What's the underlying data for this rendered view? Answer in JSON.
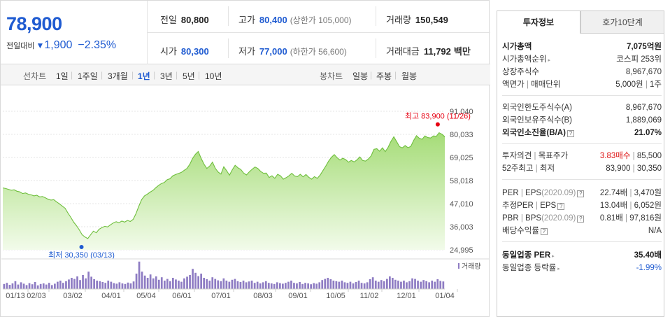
{
  "summary": {
    "price": "78,900",
    "change_label": "전일대비",
    "change_arrow": "▼",
    "change_value": "1,900",
    "change_pct": "−2.35%",
    "prev_close": {
      "label": "전일",
      "value": "80,800"
    },
    "high": {
      "label": "고가",
      "value": "80,400",
      "sub": "(상한가 105,000)"
    },
    "volume": {
      "label": "거래량",
      "value": "150,549"
    },
    "open": {
      "label": "시가",
      "value": "80,300"
    },
    "low": {
      "label": "저가",
      "value": "77,000",
      "sub": "(하한가 56,600)"
    },
    "amount": {
      "label": "거래대금",
      "value": "11,792",
      "unit": "백만"
    }
  },
  "periods": {
    "line_label": "선차트",
    "line_items": [
      "1일",
      "1주일",
      "3개월",
      "1년",
      "3년",
      "5년",
      "10년"
    ],
    "active": "1년",
    "candle_label": "봉차트",
    "candle_items": [
      "일봉",
      "주봉",
      "월봉"
    ]
  },
  "chart_data": {
    "type": "area",
    "y_ticks": [
      "91,040",
      "80,033",
      "69,025",
      "58,018",
      "47,010",
      "36,003",
      "24,995"
    ],
    "ylim": [
      24995,
      91040
    ],
    "x_labels": [
      "01/13",
      "02/03",
      "03/02",
      "04/01",
      "05/04",
      "06/01",
      "07/01",
      "08/03",
      "09/01",
      "10/05",
      "11/02",
      "12/01",
      "01/04"
    ],
    "max_annotation": "최고 83,900 (11/26)",
    "min_annotation": "최저 30,350 (03/13)",
    "volume_legend": "거래량",
    "series": [
      {
        "values": [
          54500,
          54200,
          53800,
          53400,
          53600,
          52900,
          52600,
          51800,
          52100,
          51500,
          51200,
          50700,
          51000,
          50200,
          50400,
          49800,
          49100,
          48700,
          48900,
          47800,
          46900,
          45800,
          44800,
          42500,
          40500,
          38200,
          36500,
          34500,
          32200,
          31100,
          30350,
          32200,
          33900,
          33100,
          34800,
          35600,
          36200,
          35900,
          36900,
          37800,
          38400,
          37900,
          38700,
          38200,
          39000,
          38500,
          39500,
          42200,
          45800,
          48900,
          50700,
          51500,
          52500,
          53300,
          54600,
          55700,
          56600,
          57100,
          58400,
          58900,
          60300,
          60900,
          61400,
          61900,
          62900,
          63800,
          65800,
          68600,
          70600,
          71900,
          68600,
          65900,
          63800,
          64900,
          66800,
          63900,
          62100,
          61100,
          64600,
          62700,
          60600,
          63200,
          65300,
          64100,
          63300,
          61600,
          60700,
          62200,
          63400,
          64500,
          63800,
          62400,
          61500,
          61600,
          59500,
          60300,
          59100,
          61000,
          60300,
          58700,
          59400,
          60300,
          61500,
          60200,
          59900,
          61000,
          59800,
          60900,
          59600,
          58700,
          59900,
          59100,
          60600,
          62800,
          64900,
          67300,
          69100,
          70400,
          68900,
          67800,
          68700,
          68000,
          66800,
          67600,
          66900,
          67900,
          69300,
          67600,
          67300,
          68300,
          69800,
          72900,
          73200,
          72000,
          73600,
          71800,
          73900,
          76700,
          78900,
          76600,
          74200,
          73600,
          74700,
          73700,
          74300,
          77100,
          79400,
          78200,
          77700,
          79300,
          78500,
          78300,
          79300,
          79100,
          80800,
          80100,
          78900
        ]
      }
    ],
    "volume": [
      0.18,
      0.22,
      0.15,
      0.2,
      0.28,
      0.16,
      0.24,
      0.19,
      0.14,
      0.21,
      0.17,
      0.25,
      0.13,
      0.18,
      0.2,
      0.16,
      0.22,
      0.14,
      0.19,
      0.26,
      0.3,
      0.22,
      0.28,
      0.34,
      0.4,
      0.36,
      0.45,
      0.32,
      0.5,
      0.38,
      0.62,
      0.44,
      0.35,
      0.3,
      0.28,
      0.25,
      0.22,
      0.3,
      0.26,
      0.21,
      0.19,
      0.24,
      0.2,
      0.18,
      0.23,
      0.2,
      0.27,
      0.55,
      0.98,
      0.62,
      0.48,
      0.4,
      0.52,
      0.38,
      0.45,
      0.33,
      0.42,
      0.3,
      0.36,
      0.28,
      0.4,
      0.34,
      0.3,
      0.26,
      0.38,
      0.44,
      0.5,
      0.72,
      0.58,
      0.46,
      0.55,
      0.4,
      0.35,
      0.3,
      0.42,
      0.36,
      0.31,
      0.28,
      0.38,
      0.3,
      0.26,
      0.33,
      0.36,
      0.28,
      0.25,
      0.3,
      0.24,
      0.27,
      0.3,
      0.22,
      0.26,
      0.2,
      0.24,
      0.28,
      0.22,
      0.2,
      0.18,
      0.24,
      0.21,
      0.19,
      0.22,
      0.26,
      0.3,
      0.22,
      0.2,
      0.25,
      0.18,
      0.22,
      0.2,
      0.17,
      0.21,
      0.19,
      0.24,
      0.32,
      0.36,
      0.4,
      0.35,
      0.3,
      0.28,
      0.26,
      0.3,
      0.24,
      0.22,
      0.26,
      0.2,
      0.25,
      0.3,
      0.22,
      0.2,
      0.24,
      0.35,
      0.42,
      0.3,
      0.26,
      0.32,
      0.28,
      0.36,
      0.45,
      0.4,
      0.33,
      0.3,
      0.26,
      0.3,
      0.24,
      0.28,
      0.38,
      0.36,
      0.3,
      0.26,
      0.32,
      0.28,
      0.24,
      0.3,
      0.26,
      0.35,
      0.29,
      0.27
    ]
  },
  "tabs": {
    "invest": "투자정보",
    "hoga": "호가10단계"
  },
  "info": {
    "market_cap": {
      "label": "시가총액",
      "value": "7,075억원"
    },
    "market_cap_rank": {
      "label": "시가총액순위",
      "value": "코스피 253위"
    },
    "shares": {
      "label": "상장주식수",
      "value": "8,967,670"
    },
    "par_label_a": "액면가",
    "par_label_b": "매매단위",
    "par_value_a": "5,000원",
    "par_value_b": "1주",
    "foreign_limit": {
      "label": "외국인한도주식수(A)",
      "value": "8,967,670"
    },
    "foreign_hold": {
      "label": "외국인보유주식수(B)",
      "value": "1,889,069"
    },
    "foreign_ratio": {
      "label": "외국인소진율(B/A)",
      "value": "21.07%"
    },
    "opinion_label_a": "투자의견",
    "opinion_label_b": "목표주가",
    "opinion_value": "3.83매수",
    "target_value": "85,500",
    "w52_label_a": "52주최고",
    "w52_label_b": "최저",
    "w52_high": "83,900",
    "w52_low": "30,350",
    "per_label": "PER",
    "eps_label": "EPS",
    "eps_year": "(2020.09)",
    "per_value": "22.74배",
    "eps_value": "3,470원",
    "est_per_label": "추정PER",
    "est_eps_label": "EPS",
    "est_per_value": "13.04배",
    "est_eps_value": "6,052원",
    "pbr_label": "PBR",
    "bps_label": "BPS",
    "bps_year": "(2020.09)",
    "pbr_value": "0.81배",
    "bps_value": "97,816원",
    "dividend": {
      "label": "배당수익률",
      "value": "N/A"
    },
    "sector_per": {
      "label": "동일업종 PER",
      "value": "35.40배"
    },
    "sector_rate": {
      "label": "동일업종 등락률",
      "value": "-1.99%"
    }
  }
}
